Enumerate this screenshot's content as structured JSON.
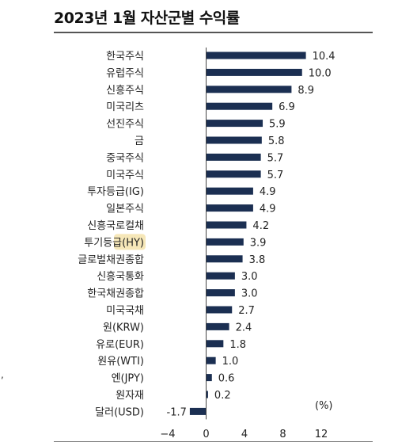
{
  "title": "2023년 1월 자산군별 수익률",
  "stray_mark": ",",
  "chart_data": {
    "type": "bar",
    "orientation": "horizontal",
    "categories": [
      "한국주식",
      "유럽주식",
      "신흥주식",
      "미국리츠",
      "선진주식",
      "금",
      "중국주식",
      "미국주식",
      "투자등급(IG)",
      "일본주식",
      "신흥국로컬채",
      "투기등급(HY)",
      "글로벌채권종합",
      "신흥국통화",
      "한국채권종합",
      "미국국채",
      "원(KRW)",
      "유로(EUR)",
      "원유(WTI)",
      "엔(JPY)",
      "원자재",
      "달러(USD)"
    ],
    "values": [
      10.4,
      10.0,
      8.9,
      6.9,
      5.9,
      5.8,
      5.7,
      5.7,
      4.9,
      4.9,
      4.2,
      3.9,
      3.8,
      3.0,
      3.0,
      2.7,
      2.4,
      1.8,
      1.0,
      0.6,
      0.2,
      -1.7
    ],
    "value_labels": [
      "10.4",
      "10.0",
      "8.9",
      "6.9",
      "5.9",
      "5.8",
      "5.7",
      "5.7",
      "4.9",
      "4.9",
      "4.2",
      "3.9",
      "3.8",
      "3.0",
      "3.0",
      "2.7",
      "2.4",
      "1.8",
      "1.0",
      "0.6",
      "0.2",
      "-1.7"
    ],
    "xlim": [
      -4,
      12
    ],
    "xticks": [
      -4,
      0,
      4,
      8,
      12
    ],
    "xtick_labels": [
      "−4",
      "0",
      "4",
      "8",
      "12"
    ],
    "unit_label": "(%)",
    "bar_color": "#1b2f52",
    "highlight_color": "#f6e7b8",
    "highlight_category_index": 11,
    "grid": false
  }
}
